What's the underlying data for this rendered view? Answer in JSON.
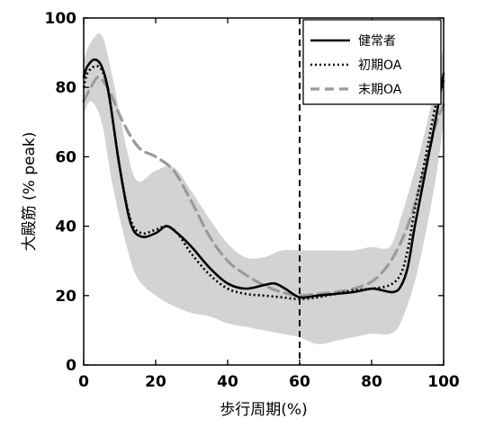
{
  "chart_data": {
    "type": "line",
    "title": "",
    "xlabel": "歩行周期(%)",
    "ylabel": "大殿筋 (% peak)",
    "xlim": [
      0,
      100
    ],
    "ylim": [
      0,
      100
    ],
    "xticks": [
      "0",
      "20",
      "40",
      "60",
      "80",
      "100"
    ],
    "yticks": [
      "0",
      "20",
      "40",
      "60",
      "80",
      "100"
    ],
    "grid": false,
    "legend_position": "top-right",
    "vertical_reference_line": {
      "x": 60,
      "style": "dashed",
      "color": "#000000"
    },
    "band": {
      "color": "#d3d3d3",
      "x": [
        0,
        2,
        5,
        8,
        12,
        15,
        20,
        25,
        30,
        35,
        40,
        45,
        50,
        55,
        60,
        65,
        70,
        75,
        80,
        85,
        88,
        92,
        95,
        98,
        100
      ],
      "upper": [
        88,
        93,
        95,
        83,
        62,
        53,
        56,
        57,
        50,
        42,
        35,
        31,
        31,
        33,
        33,
        33,
        33,
        33,
        34,
        34,
        42,
        56,
        68,
        82,
        92
      ],
      "lower": [
        72,
        76,
        70,
        52,
        34,
        25,
        20,
        17,
        15,
        14,
        12,
        11,
        10,
        9,
        8,
        6,
        7,
        8,
        9,
        9,
        12,
        24,
        38,
        55,
        70
      ]
    },
    "series": [
      {
        "name": "健常者",
        "color": "#000000",
        "style": "solid",
        "x": [
          0,
          1,
          3,
          5,
          7,
          10,
          13,
          16,
          20,
          23,
          26,
          30,
          35,
          40,
          45,
          50,
          53,
          56,
          60,
          65,
          70,
          75,
          80,
          83,
          86,
          88,
          90,
          92,
          95,
          98,
          100
        ],
        "y": [
          83,
          86,
          88,
          86,
          78,
          57,
          41,
          37,
          38,
          40,
          38,
          34,
          28,
          23.5,
          22,
          23,
          23.5,
          22,
          19.5,
          20,
          20.5,
          21,
          22,
          21.5,
          21,
          22.5,
          28,
          40,
          56,
          72,
          84
        ]
      },
      {
        "name": "初期OA",
        "color": "#000000",
        "style": "dotted",
        "x": [
          0,
          1,
          3,
          5,
          7,
          10,
          13,
          16,
          20,
          23,
          26,
          30,
          35,
          40,
          45,
          50,
          55,
          60,
          65,
          70,
          75,
          80,
          85,
          88,
          90,
          92,
          95,
          98,
          100
        ],
        "y": [
          80,
          84,
          86,
          85,
          78,
          57,
          42,
          38,
          39,
          40,
          38,
          32,
          26,
          22,
          20.5,
          20,
          19.5,
          19,
          19.5,
          20.5,
          21.5,
          22,
          23,
          26,
          33,
          45,
          60,
          76,
          82
        ]
      },
      {
        "name": "末期OA",
        "color": "#9a9a9a",
        "style": "dashed",
        "x": [
          0,
          2,
          4,
          6,
          8,
          10,
          13,
          16,
          20,
          25,
          30,
          35,
          40,
          45,
          50,
          55,
          60,
          65,
          70,
          75,
          80,
          84,
          87,
          90,
          93,
          96,
          98,
          100
        ],
        "y": [
          76,
          80,
          83,
          81,
          77,
          72,
          66,
          62,
          60,
          56,
          47,
          37,
          30,
          26,
          23,
          21,
          20,
          20.5,
          21,
          22,
          24,
          28,
          33,
          40,
          50,
          62,
          70,
          75
        ]
      }
    ]
  }
}
